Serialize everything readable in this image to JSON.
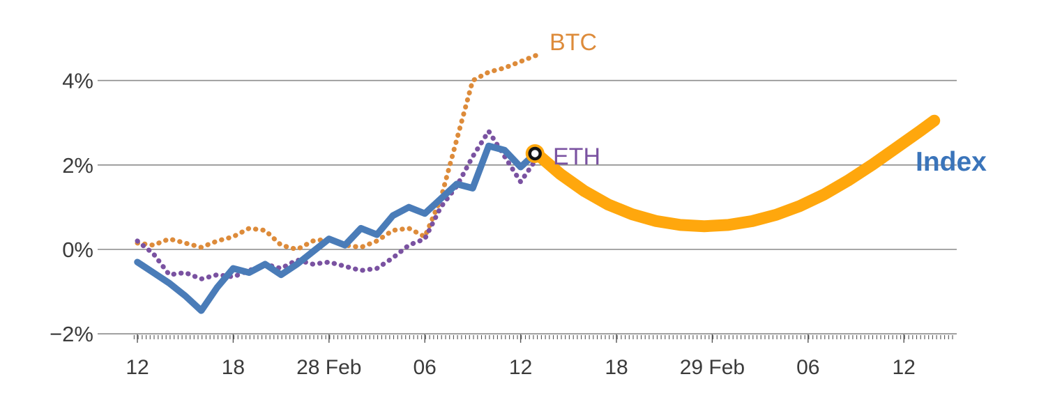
{
  "labels": {
    "btc": {
      "text": "BTC",
      "color": "#dd8b3a"
    },
    "eth": {
      "text": "ETH",
      "color": "#7a52a1"
    },
    "index": {
      "text": "Index",
      "color": "#3a74ba"
    }
  },
  "colors": {
    "grid": "#8a8a8a",
    "axis_text": "#3b3b3b",
    "tick": "#555555",
    "btc_line": "#dd8b3a",
    "eth_line": "#7a52a1",
    "index_line": "#4a7cb8",
    "projection_line": "#ffa70d",
    "marker_ring": "#151515",
    "marker_center": "#ffffff"
  },
  "chart_data": {
    "type": "line",
    "title": "",
    "xlabel": "",
    "ylabel": "",
    "grid": "horizontal",
    "xlim": [
      -0.5,
      51.5
    ],
    "ylim": [
      -2.2,
      5.2
    ],
    "y_ticks": [
      {
        "label": "4%",
        "value": 4
      },
      {
        "label": "2%",
        "value": 2
      },
      {
        "label": "0%",
        "value": 0
      },
      {
        "label": "−2%",
        "value": -2
      }
    ],
    "x_ticks": [
      {
        "label": "12",
        "x": 0
      },
      {
        "label": "18",
        "x": 6
      },
      {
        "label": "28 Feb",
        "x": 12
      },
      {
        "label": "06",
        "x": 18
      },
      {
        "label": "12",
        "x": 24
      },
      {
        "label": "18",
        "x": 30
      },
      {
        "label": "29 Feb",
        "x": 36
      },
      {
        "label": "06",
        "x": 42
      },
      {
        "label": "12",
        "x": 48
      }
    ],
    "series": [
      {
        "name": "BTC",
        "style": "dotted",
        "color": "#dd8b3a",
        "x": [
          0,
          1,
          2,
          3,
          4,
          5,
          6,
          7,
          8,
          9,
          10,
          11,
          12,
          13,
          14,
          15,
          16,
          17,
          18,
          19,
          20,
          21,
          22,
          23,
          24,
          25
        ],
        "values": [
          0.15,
          0.1,
          0.25,
          0.15,
          0.05,
          0.2,
          0.3,
          0.5,
          0.45,
          0.1,
          0.0,
          0.2,
          0.25,
          0.1,
          0.05,
          0.2,
          0.45,
          0.5,
          0.3,
          1.2,
          2.6,
          4.0,
          4.2,
          4.3,
          4.45,
          4.6
        ]
      },
      {
        "name": "ETH",
        "style": "dotted",
        "color": "#7a52a1",
        "x": [
          0,
          1,
          2,
          3,
          4,
          5,
          6,
          7,
          8,
          9,
          10,
          11,
          12,
          13,
          14,
          15,
          16,
          17,
          18,
          19,
          20,
          21,
          22,
          23,
          24,
          25
        ],
        "values": [
          0.2,
          -0.1,
          -0.6,
          -0.55,
          -0.7,
          -0.6,
          -0.65,
          -0.5,
          -0.35,
          -0.45,
          -0.25,
          -0.35,
          -0.3,
          -0.4,
          -0.5,
          -0.45,
          -0.2,
          0.1,
          0.25,
          1.0,
          1.5,
          2.2,
          2.8,
          2.2,
          1.6,
          2.15
        ]
      },
      {
        "name": "Index",
        "style": "solid",
        "color": "#4a7cb8",
        "x": [
          0,
          1,
          2,
          3,
          4,
          5,
          6,
          7,
          8,
          9,
          10,
          11,
          12,
          13,
          14,
          15,
          16,
          17,
          18,
          19,
          20,
          21,
          22,
          23,
          24,
          25
        ],
        "values": [
          -0.3,
          -0.55,
          -0.8,
          -1.1,
          -1.45,
          -0.9,
          -0.45,
          -0.55,
          -0.35,
          -0.6,
          -0.35,
          -0.05,
          0.25,
          0.1,
          0.5,
          0.35,
          0.8,
          1.0,
          0.85,
          1.2,
          1.55,
          1.45,
          2.45,
          2.35,
          1.95,
          2.3
        ]
      },
      {
        "name": "projection",
        "style": "solid-thick",
        "color": "#ffa70d",
        "x": [
          25,
          26.5,
          28,
          29.5,
          31,
          32.5,
          34,
          35.5,
          37,
          38.5,
          40,
          41.5,
          43,
          44.5,
          46,
          47.5,
          49,
          49.9
        ],
        "values": [
          2.27,
          1.78,
          1.38,
          1.06,
          0.83,
          0.67,
          0.58,
          0.55,
          0.58,
          0.67,
          0.82,
          1.03,
          1.3,
          1.63,
          2.0,
          2.4,
          2.8,
          3.05
        ]
      }
    ],
    "marker": {
      "x": 24.9,
      "value": 2.27
    }
  }
}
